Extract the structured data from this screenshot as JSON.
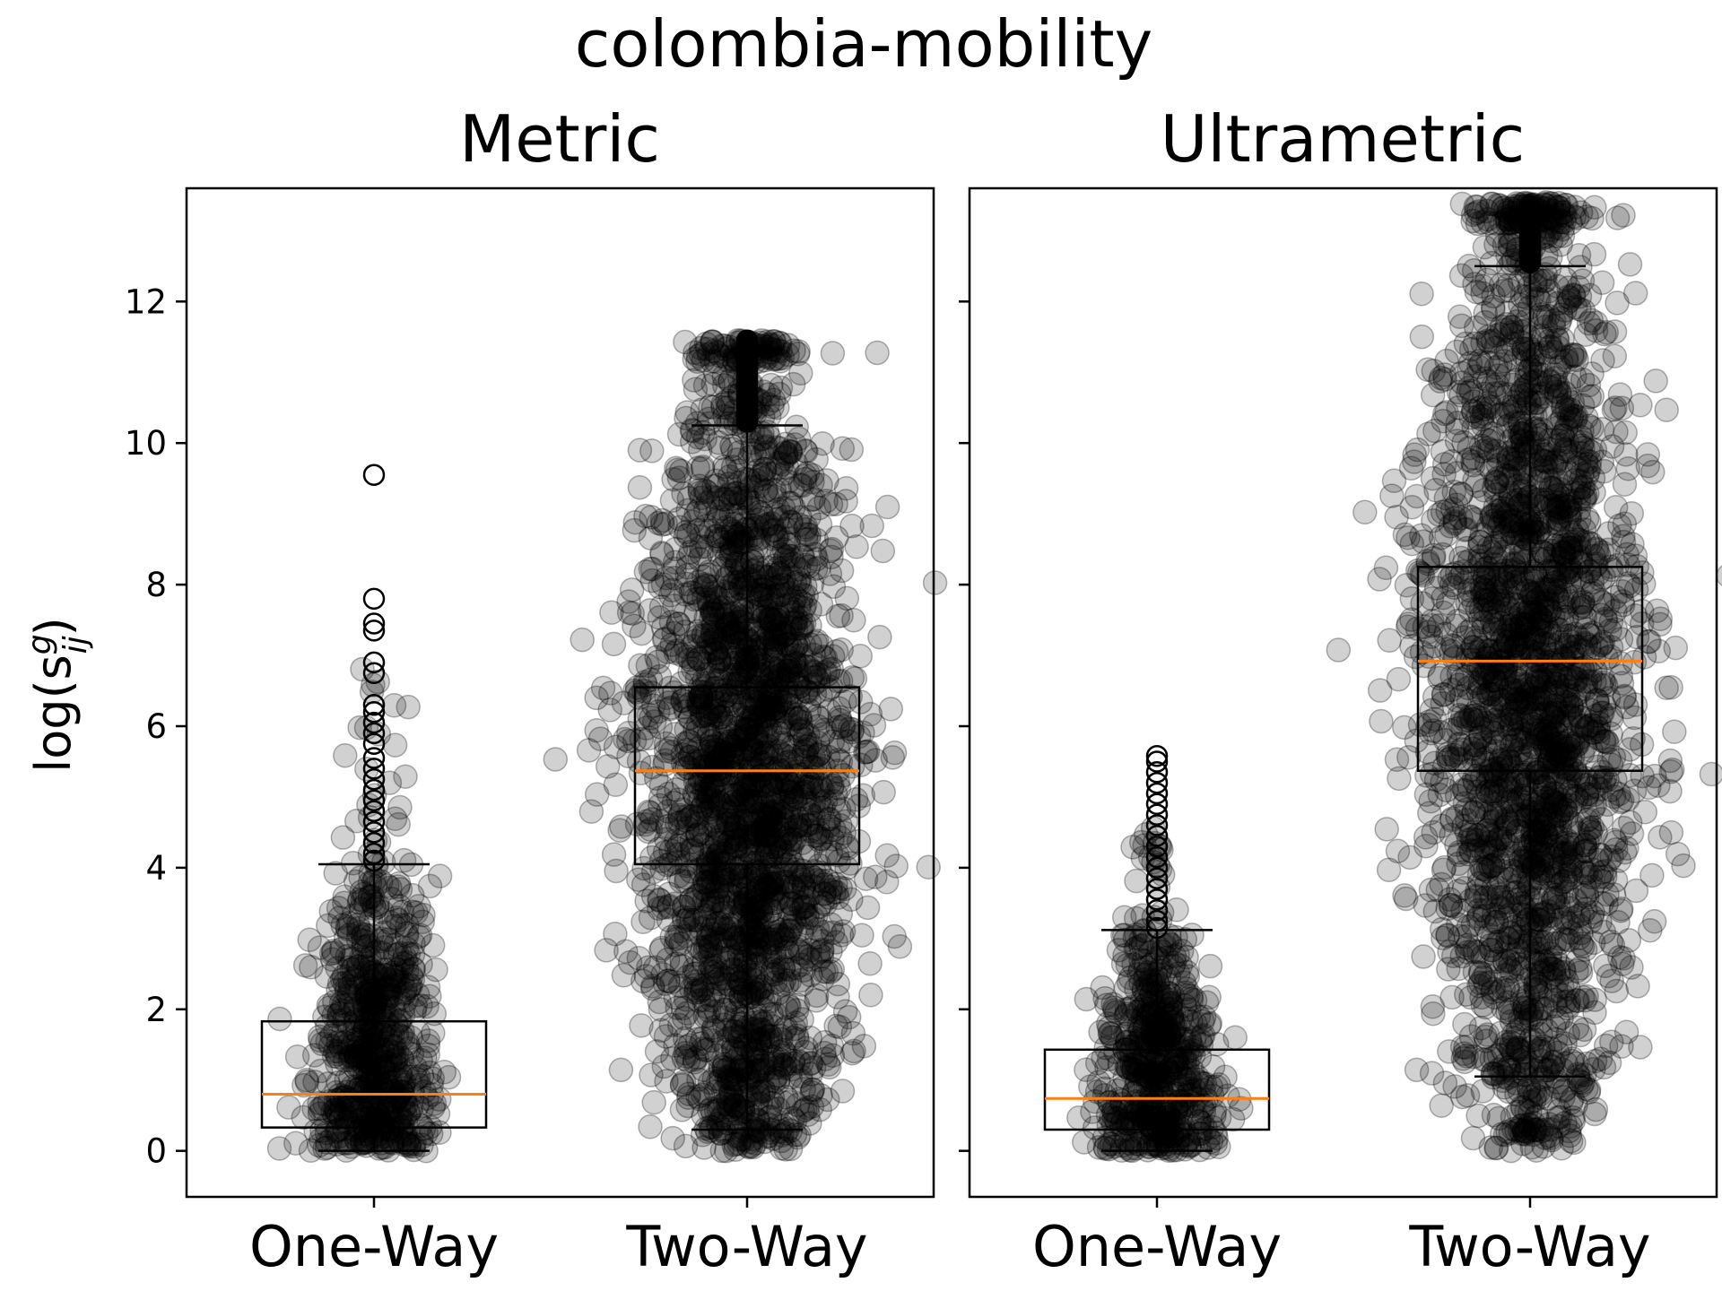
{
  "figure": {
    "suptitle": "colombia-mobility",
    "ylabel_main": "log(s",
    "ylabel_sup": "g",
    "ylabel_sub": "ij",
    "ylabel_close": ")"
  },
  "colors": {
    "box": "#000000",
    "median": "#ff7f0e",
    "points": "#000000",
    "flier": "#000000"
  },
  "chart_data": [
    {
      "type": "box",
      "title": "Metric",
      "categories": [
        "One-Way",
        "Two-Way"
      ],
      "ylim": [
        -0.65,
        13.6
      ],
      "yticks": [
        0,
        2,
        4,
        6,
        8,
        10,
        12
      ],
      "boxes": [
        {
          "label": "One-Way",
          "whisker_low": 0.0,
          "q1": 0.33,
          "median": 0.8,
          "q3": 1.83,
          "whisker_high": 4.05,
          "fliers": [
            4.1,
            4.2,
            4.35,
            4.5,
            4.65,
            4.8,
            4.95,
            5.1,
            5.25,
            5.4,
            5.55,
            5.75,
            5.9,
            6.05,
            6.2,
            6.3,
            6.75,
            6.9,
            7.35,
            7.45,
            7.8,
            9.55
          ],
          "scatter": {
            "count": 700,
            "density": "heavy near 0-3, sparse above 4",
            "max": 9.55
          }
        },
        {
          "label": "Two-Way",
          "whisker_low": 0.3,
          "q1": 4.05,
          "median": 5.37,
          "q3": 6.55,
          "whisker_high": 10.25,
          "fliers_range": [
            10.3,
            11.45
          ],
          "scatter": {
            "count": 2600,
            "density": "dense 0-11.5",
            "max": 11.45
          }
        }
      ]
    },
    {
      "type": "box",
      "title": "Ultrametric",
      "categories": [
        "One-Way",
        "Two-Way"
      ],
      "ylim": [
        -0.65,
        13.6
      ],
      "yticks": [
        0,
        2,
        4,
        6,
        8,
        10,
        12
      ],
      "boxes": [
        {
          "label": "One-Way",
          "whisker_low": 0.0,
          "q1": 0.3,
          "median": 0.74,
          "q3": 1.43,
          "whisker_high": 3.12,
          "fliers": [
            3.15,
            3.25,
            3.4,
            3.55,
            3.7,
            3.85,
            4.0,
            4.15,
            4.3,
            4.45,
            4.6,
            4.75,
            4.9,
            5.05,
            5.2,
            5.35,
            5.5,
            5.58
          ],
          "scatter": {
            "count": 600,
            "density": "heavy near 0-2, sparse above 3",
            "max": 5.6
          }
        },
        {
          "label": "Two-Way",
          "whisker_low": 1.05,
          "q1": 5.37,
          "median": 6.92,
          "q3": 8.25,
          "whisker_high": 12.5,
          "fliers_range": [
            12.55,
            13.35
          ],
          "scatter": {
            "count": 2600,
            "density": "dense 0-13.4",
            "max": 13.4
          }
        }
      ]
    }
  ]
}
